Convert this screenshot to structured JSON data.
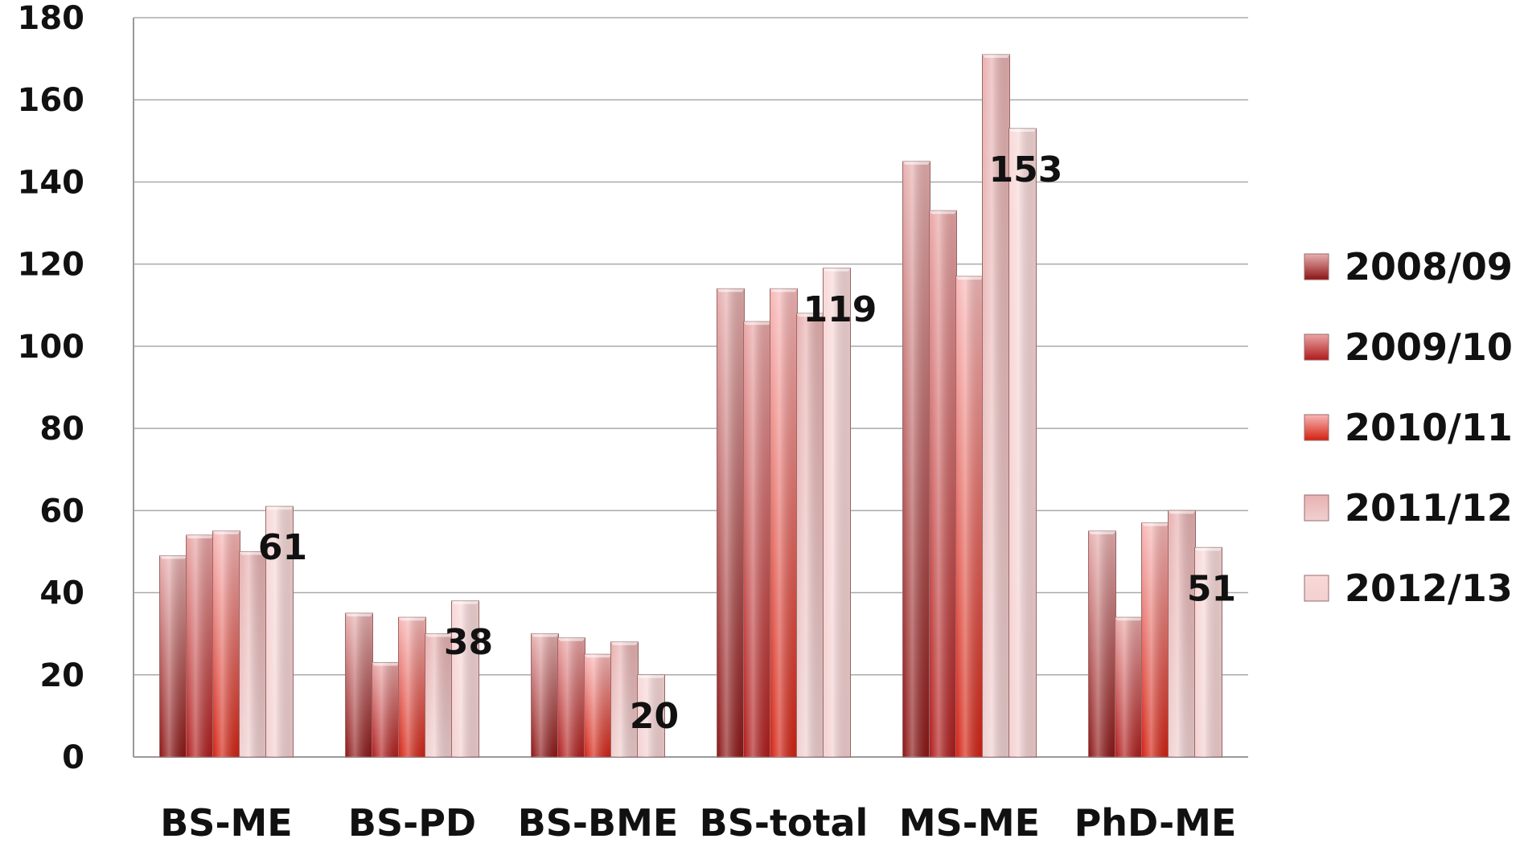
{
  "chart_data": {
    "type": "bar",
    "categories": [
      "BS-ME",
      "BS-PD",
      "BS-BME",
      "BS-total",
      "MS-ME",
      "PhD-ME"
    ],
    "series": [
      {
        "name": "2008/09",
        "values": [
          49,
          35,
          30,
          114,
          145,
          55
        ]
      },
      {
        "name": "2009/10",
        "values": [
          54,
          23,
          29,
          106,
          133,
          34
        ]
      },
      {
        "name": "2010/11",
        "values": [
          55,
          34,
          25,
          114,
          117,
          57
        ]
      },
      {
        "name": "2011/12",
        "values": [
          50,
          30,
          28,
          108,
          171,
          60
        ]
      },
      {
        "name": "2012/13",
        "values": [
          61,
          38,
          20,
          119,
          153,
          51
        ]
      }
    ],
    "y_ticks": [
      "0",
      "20",
      "40",
      "60",
      "80",
      "100",
      "120",
      "140",
      "160",
      "180"
    ],
    "data_labels": [
      {
        "category": "BS-ME",
        "series": "2012/13",
        "text": "61"
      },
      {
        "category": "BS-PD",
        "series": "2012/13",
        "text": "38"
      },
      {
        "category": "BS-BME",
        "series": "2012/13",
        "text": "20"
      },
      {
        "category": "BS-total",
        "series": "2012/13",
        "text": "119"
      },
      {
        "category": "MS-ME",
        "series": "2012/13",
        "text": "153"
      },
      {
        "category": "PhD-ME",
        "series": "2012/13",
        "text": "51"
      }
    ],
    "ylim": [
      0,
      180
    ],
    "grid": true,
    "legend_position": "right",
    "title": "",
    "xlabel": "",
    "ylabel": "",
    "colors": {
      "2008/09": {
        "top": "#e8b0b0",
        "bottom": "#8c1414"
      },
      "2009/10": {
        "top": "#eaa6a6",
        "bottom": "#b01a1a"
      },
      "2010/11": {
        "top": "#f7b8b8",
        "bottom": "#d42010"
      },
      "2011/12": {
        "top": "#e8b0b0",
        "bottom": "#f0d0d0"
      },
      "2012/13": {
        "top": "#f8d8d8",
        "bottom": "#f4d0d0"
      }
    },
    "gridline_color": "#aaaaaa"
  }
}
